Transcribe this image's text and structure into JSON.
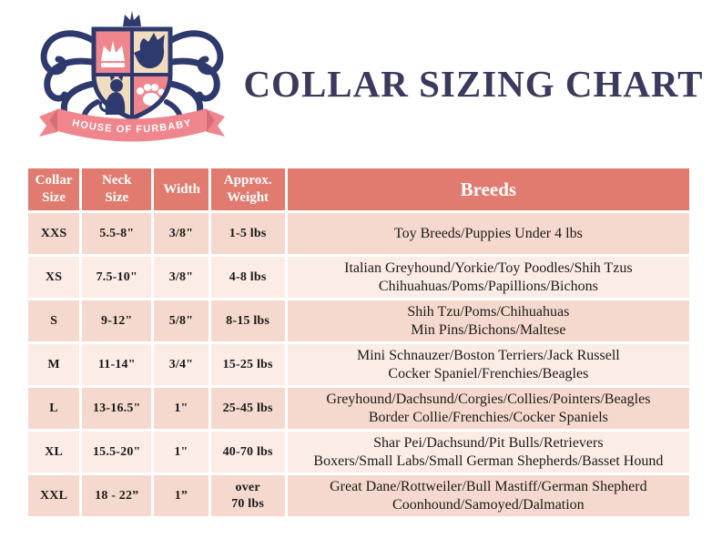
{
  "brand": {
    "name": "HOUSE OF FURBABY",
    "icons": [
      "crest-shield",
      "crown-icon",
      "dog-icon",
      "cat-icon",
      "paw-icon",
      "ribbon-banner"
    ]
  },
  "title": "COLLAR SIZING CHART",
  "colors": {
    "navy": "#2e3a6e",
    "logo-pink": "#f0868d",
    "logo-pink-shade": "#d96d77",
    "logo-cream": "#f2dcbe",
    "title-color": "#3a3a5e",
    "header-bg": "#e17b6f",
    "header-text": "#ffffff",
    "row-dark": "#f6d9ce",
    "row-light": "#fcece6",
    "cell-text": "#1a1a1a"
  },
  "chart_data": {
    "type": "table",
    "title": "COLLAR SIZING CHART",
    "columns": [
      "Collar Size",
      "Neck Size",
      "Width",
      "Approx. Weight",
      "Breeds"
    ],
    "rows": [
      {
        "size": "XXS",
        "neck": "5.5-8\"",
        "width": "3/8\"",
        "weight": [
          "1-5 lbs"
        ],
        "breeds": [
          "Toy Breeds/Puppies Under 4 lbs"
        ]
      },
      {
        "size": "XS",
        "neck": "7.5-10\"",
        "width": "3/8\"",
        "weight": [
          "4-8 lbs"
        ],
        "breeds": [
          "Italian Greyhound/Yorkie/Toy Poodles/Shih Tzus",
          "Chihuahuas/Poms/Papillions/Bichons"
        ]
      },
      {
        "size": "S",
        "neck": "9-12\"",
        "width": "5/8\"",
        "weight": [
          "8-15 lbs"
        ],
        "breeds": [
          "Shih Tzu/Poms/Chihuahuas",
          "Min Pins/Bichons/Maltese"
        ]
      },
      {
        "size": "M",
        "neck": "11-14\"",
        "width": "3/4\"",
        "weight": [
          "15-25 lbs"
        ],
        "breeds": [
          "Mini Schnauzer/Boston Terriers/Jack Russell",
          "Cocker Spaniel/Frenchies/Beagles"
        ]
      },
      {
        "size": "L",
        "neck": "13-16.5\"",
        "width": "1\"",
        "weight": [
          "25-45 lbs"
        ],
        "breeds": [
          "Greyhound/Dachsund/Corgies/Collies/Pointers/Beagles",
          "Border Collie/Frenchies/Cocker Spaniels"
        ]
      },
      {
        "size": "XL",
        "neck": "15.5-20\"",
        "width": "1\"",
        "weight": [
          "40-70 lbs"
        ],
        "breeds": [
          "Shar Pei/Dachsund/Pit Bulls/Retrievers",
          "Boxers/Small Labs/Small German Shepherds/Basset Hound"
        ]
      },
      {
        "size": "XXL",
        "neck": "18 - 22”",
        "width": "1”",
        "weight": [
          "over",
          "70 lbs"
        ],
        "breeds": [
          "Great Dane/Rottweiler/Bull Mastiff/German Shepherd",
          "Coonhound/Samoyed/Dalmation"
        ]
      }
    ]
  }
}
